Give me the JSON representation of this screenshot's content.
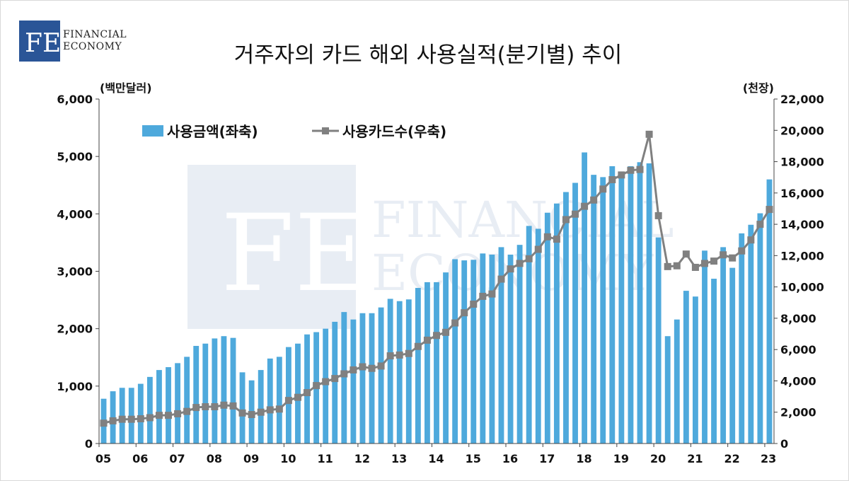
{
  "brand": {
    "monogram": "FE",
    "line1": "FINANCIAL",
    "line2": "ECONOMY"
  },
  "chart_data": {
    "type": "bar",
    "title": "거주자의 카드 해외 사용실적(분기별) 추이",
    "y_left_unit": "(백만달러)",
    "y_right_unit": "(천장)",
    "y_left_lim": [
      0,
      6000
    ],
    "y_right_lim": [
      0,
      22000
    ],
    "y_left_ticks": [
      "0",
      "1,000",
      "2,000",
      "3,000",
      "4,000",
      "5,000",
      "6,000"
    ],
    "y_right_ticks": [
      "0",
      "2,000",
      "4,000",
      "6,000",
      "8,000",
      "10,000",
      "12,000",
      "14,000",
      "16,000",
      "18,000",
      "20,000",
      "22,000"
    ],
    "x_tick_labels": [
      "05",
      "06",
      "07",
      "08",
      "09",
      "10",
      "11",
      "12",
      "13",
      "14",
      "15",
      "16",
      "17",
      "18",
      "19",
      "20",
      "21",
      "22",
      "23"
    ],
    "categories": [
      "05Q1",
      "05Q2",
      "05Q3",
      "05Q4",
      "06Q1",
      "06Q2",
      "06Q3",
      "06Q4",
      "07Q1",
      "07Q2",
      "07Q3",
      "07Q4",
      "08Q1",
      "08Q2",
      "08Q3",
      "08Q4",
      "09Q1",
      "09Q2",
      "09Q3",
      "09Q4",
      "10Q1",
      "10Q2",
      "10Q3",
      "10Q4",
      "11Q1",
      "11Q2",
      "11Q3",
      "11Q4",
      "12Q1",
      "12Q2",
      "12Q3",
      "12Q4",
      "13Q1",
      "13Q2",
      "13Q3",
      "13Q4",
      "14Q1",
      "14Q2",
      "14Q3",
      "14Q4",
      "15Q1",
      "15Q2",
      "15Q3",
      "15Q4",
      "16Q1",
      "16Q2",
      "16Q3",
      "16Q4",
      "17Q1",
      "17Q2",
      "17Q3",
      "17Q4",
      "18Q1",
      "18Q2",
      "18Q3",
      "18Q4",
      "19Q1",
      "19Q2",
      "19Q3",
      "19Q4",
      "20Q1",
      "20Q2",
      "20Q3",
      "20Q4",
      "21Q1",
      "21Q2",
      "21Q3",
      "21Q4",
      "22Q1",
      "22Q2",
      "22Q3",
      "22Q4",
      "23Q1"
    ],
    "legend_position": "top-left",
    "grid": false,
    "series": [
      {
        "name": "사용금액(좌축)",
        "type": "bar",
        "axis": "left",
        "color": "#4ea9dc",
        "values": [
          780,
          910,
          970,
          970,
          1040,
          1160,
          1280,
          1330,
          1400,
          1510,
          1700,
          1740,
          1830,
          1870,
          1840,
          1240,
          1100,
          1280,
          1480,
          1510,
          1680,
          1740,
          1900,
          1940,
          2000,
          2120,
          2290,
          2160,
          2270,
          2270,
          2370,
          2520,
          2480,
          2510,
          2710,
          2810,
          2810,
          2980,
          3210,
          3190,
          3200,
          3310,
          3290,
          3420,
          3290,
          3460,
          3790,
          3740,
          4020,
          4180,
          4380,
          4540,
          5070,
          4680,
          4640,
          4830,
          4720,
          4830,
          4900,
          4880,
          3590,
          1870,
          2160,
          2660,
          2560,
          3360,
          2870,
          3420,
          3060,
          3660,
          3810,
          4010,
          4600
        ]
      },
      {
        "name": "사용카드수(우축)",
        "type": "line",
        "axis": "right",
        "color": "#808080",
        "values": [
          1300,
          1450,
          1550,
          1550,
          1580,
          1650,
          1800,
          1800,
          1900,
          2050,
          2300,
          2350,
          2350,
          2450,
          2400,
          1950,
          1850,
          2000,
          2150,
          2200,
          2750,
          2950,
          3250,
          3700,
          3950,
          4150,
          4450,
          4700,
          4900,
          4800,
          4950,
          5600,
          5650,
          5750,
          6200,
          6600,
          6900,
          7100,
          7700,
          8350,
          8900,
          9400,
          9550,
          10500,
          11150,
          11500,
          11800,
          12400,
          13200,
          13050,
          14300,
          14650,
          15150,
          15550,
          16250,
          16850,
          17150,
          17450,
          17500,
          19750,
          14550,
          11300,
          11350,
          12100,
          11250,
          11500,
          11650,
          12050,
          11850,
          12300,
          13000,
          14000,
          14950
        ]
      }
    ]
  }
}
